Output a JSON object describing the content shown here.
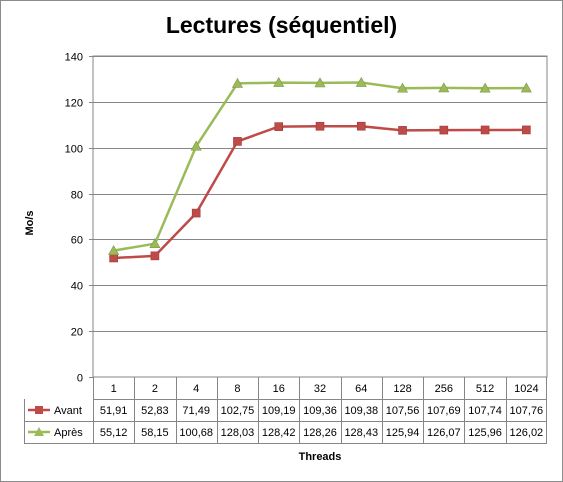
{
  "chart_data": {
    "type": "line",
    "title": "Lectures (séquentiel)",
    "xlabel": "Threads",
    "ylabel": "Mo/s",
    "categories": [
      "1",
      "2",
      "4",
      "8",
      "16",
      "32",
      "64",
      "128",
      "256",
      "512",
      "1024"
    ],
    "ylim": [
      0,
      140
    ],
    "yticks": [
      "0",
      "20",
      "40",
      "60",
      "80",
      "100",
      "120",
      "140"
    ],
    "grid": true,
    "legend": "data-table",
    "series": [
      {
        "name": "Avant",
        "color": "#be4b48",
        "marker": "square",
        "values": [
          51.91,
          52.83,
          71.49,
          102.75,
          109.19,
          109.36,
          109.38,
          107.56,
          107.69,
          107.74,
          107.76
        ],
        "labels": [
          "51,91",
          "52,83",
          "71,49",
          "102,75",
          "109,19",
          "109,36",
          "109,38",
          "107,56",
          "107,69",
          "107,74",
          "107,76"
        ]
      },
      {
        "name": "Après",
        "color": "#9bbb59",
        "marker": "triangle",
        "values": [
          55.12,
          58.15,
          100.68,
          128.03,
          128.42,
          128.26,
          128.43,
          125.94,
          126.07,
          125.96,
          126.02
        ],
        "labels": [
          "55,12",
          "58,15",
          "100,68",
          "128,03",
          "128,42",
          "128,26",
          "128,43",
          "125,94",
          "126,07",
          "125,96",
          "126,02"
        ]
      }
    ]
  }
}
